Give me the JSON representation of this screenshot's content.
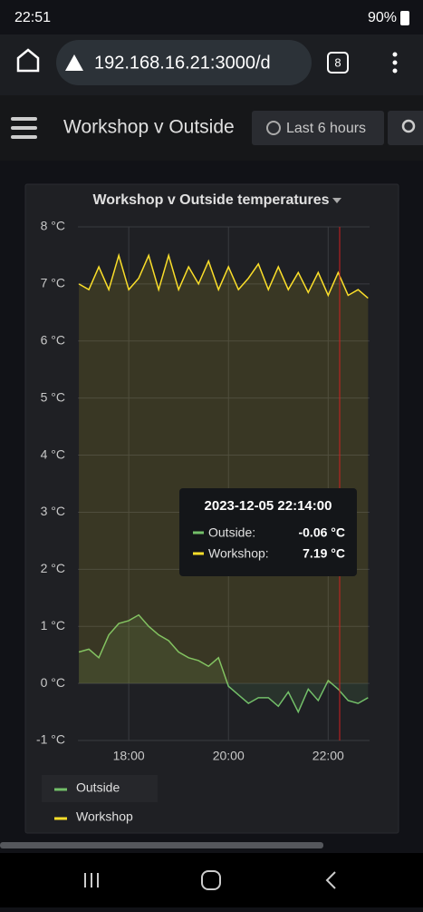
{
  "status_bar": {
    "time": "22:51",
    "battery": "90%"
  },
  "browser": {
    "url": "192.168.16.21:3000/d",
    "tabs": "8"
  },
  "dashboard": {
    "title": "Workshop v Outside",
    "time_range": "Last 6 hours"
  },
  "tooltip": {
    "time": "2023-12-05 22:14:00",
    "rows": [
      {
        "name": "Outside:",
        "value": "-0.06 °C"
      },
      {
        "name": "Workshop:",
        "value": "7.19 °C"
      }
    ]
  },
  "chart_data": {
    "type": "line",
    "title": "Workshop v Outside temperatures",
    "x": [
      17.0,
      17.2,
      17.4,
      17.6,
      17.8,
      18.0,
      18.2,
      18.4,
      18.6,
      18.8,
      19.0,
      19.2,
      19.4,
      19.6,
      19.8,
      20.0,
      20.2,
      20.4,
      20.6,
      20.8,
      21.0,
      21.2,
      21.4,
      21.6,
      21.8,
      22.0,
      22.2,
      22.4,
      22.6,
      22.8
    ],
    "series": [
      {
        "name": "Outside",
        "color": "#73bf69",
        "values": [
          0.55,
          0.6,
          0.45,
          0.85,
          1.05,
          1.1,
          1.2,
          1.0,
          0.85,
          0.75,
          0.55,
          0.45,
          0.4,
          0.3,
          0.45,
          -0.05,
          -0.2,
          -0.35,
          -0.25,
          -0.25,
          -0.4,
          -0.15,
          -0.5,
          -0.1,
          -0.3,
          0.05,
          -0.1,
          -0.3,
          -0.35,
          -0.25
        ]
      },
      {
        "name": "Workshop",
        "color": "#fade2a",
        "values": [
          7.0,
          6.9,
          7.3,
          6.9,
          7.5,
          6.9,
          7.1,
          7.5,
          6.9,
          7.5,
          6.9,
          7.3,
          7.0,
          7.4,
          6.9,
          7.3,
          6.9,
          7.1,
          7.35,
          6.9,
          7.3,
          6.9,
          7.2,
          6.85,
          7.2,
          6.8,
          7.2,
          6.8,
          6.9,
          6.75
        ]
      }
    ],
    "xlim": [
      16.98,
      22.83
    ],
    "xticks": [
      {
        "value": 18,
        "label": "18:00"
      },
      {
        "value": 20,
        "label": "20:00"
      },
      {
        "value": 22,
        "label": "22:00"
      }
    ],
    "ylim": [
      -1,
      8
    ],
    "yticks": [
      {
        "value": -1,
        "label": "-1 °C"
      },
      {
        "value": 0,
        "label": "0 °C"
      },
      {
        "value": 1,
        "label": "1 °C"
      },
      {
        "value": 2,
        "label": "2 °C"
      },
      {
        "value": 3,
        "label": "3 °C"
      },
      {
        "value": 4,
        "label": "4 °C"
      },
      {
        "value": 5,
        "label": "5 °C"
      },
      {
        "value": 6,
        "label": "6 °C"
      },
      {
        "value": 7,
        "label": "7 °C"
      },
      {
        "value": 8,
        "label": "8 °C"
      }
    ],
    "grid": true
  }
}
